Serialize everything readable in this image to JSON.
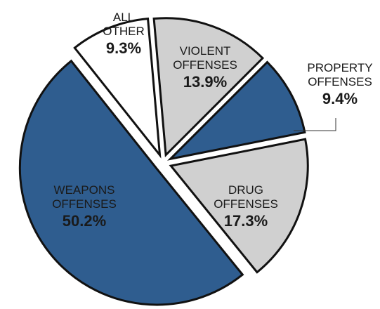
{
  "chart_data": {
    "type": "pie",
    "title": "",
    "slices": [
      {
        "label_lines": [
          "VIOLENT",
          "OFFENSES"
        ],
        "value": 13.9,
        "value_label": "13.9%",
        "color": "#d0d0d0",
        "label_color": "#1a1a1a"
      },
      {
        "label_lines": [
          "PROPERTY",
          "OFFENSES"
        ],
        "value": 9.4,
        "value_label": "9.4%",
        "color": "#2f5d8f",
        "label_color": "#1a1a1a"
      },
      {
        "label_lines": [
          "DRUG",
          "OFFENSES"
        ],
        "value": 17.3,
        "value_label": "17.3%",
        "color": "#d0d0d0",
        "label_color": "#1a1a1a"
      },
      {
        "label_lines": [
          "WEAPONS",
          "OFFENSES"
        ],
        "value": 50.2,
        "value_label": "50.2%",
        "color": "#2f5d8f",
        "label_color": "#ffffff"
      },
      {
        "label_lines": [
          "ALL",
          "OTHER"
        ],
        "value": 9.3,
        "value_label": "9.3%",
        "color": "#ffffff",
        "label_color": "#1a1a1a"
      }
    ],
    "start_angle_deg": -5,
    "direction": "clockwise",
    "exploded": true,
    "outline_color": "#111111",
    "legend": "none"
  }
}
